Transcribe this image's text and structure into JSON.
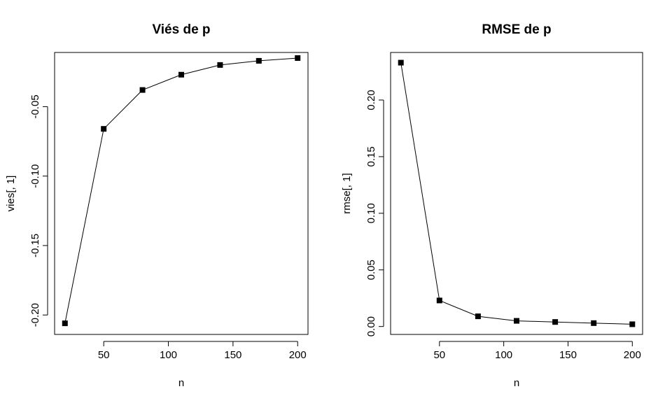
{
  "chart_data": [
    {
      "type": "line",
      "title": "Viés de p",
      "xlabel": "n",
      "ylabel": "vies[, 1]",
      "x": [
        20,
        50,
        80,
        110,
        140,
        170,
        200
      ],
      "series": [
        {
          "values": [
            -0.206,
            -0.066,
            -0.038,
            -0.027,
            -0.02,
            -0.017,
            -0.015
          ]
        }
      ],
      "xlim": [
        12,
        208
      ],
      "ylim": [
        -0.214,
        -0.011
      ],
      "xticks": [
        50,
        100,
        150,
        200
      ],
      "xtick_labels": [
        "50",
        "100",
        "150",
        "200"
      ],
      "yticks": [
        -0.2,
        -0.15,
        -0.1,
        -0.05
      ],
      "ytick_labels": [
        "-0.20",
        "-0.15",
        "-0.10",
        "-0.05"
      ],
      "markers": "filled-square",
      "grid": false,
      "line_color": "#000000"
    },
    {
      "type": "line",
      "title": "RMSE de p",
      "xlabel": "n",
      "ylabel": "rmse[, 1]",
      "x": [
        20,
        50,
        80,
        110,
        140,
        170,
        200
      ],
      "series": [
        {
          "values": [
            0.233,
            0.023,
            0.009,
            0.005,
            0.004,
            0.003,
            0.002
          ]
        }
      ],
      "xlim": [
        12,
        208
      ],
      "ylim": [
        -0.007,
        0.242
      ],
      "xticks": [
        50,
        100,
        150,
        200
      ],
      "xtick_labels": [
        "50",
        "100",
        "150",
        "200"
      ],
      "yticks": [
        0.0,
        0.05,
        0.1,
        0.15,
        0.2
      ],
      "ytick_labels": [
        "0.00",
        "0.05",
        "0.10",
        "0.15",
        "0.20"
      ],
      "markers": "filled-square",
      "grid": false,
      "line_color": "#000000"
    }
  ]
}
